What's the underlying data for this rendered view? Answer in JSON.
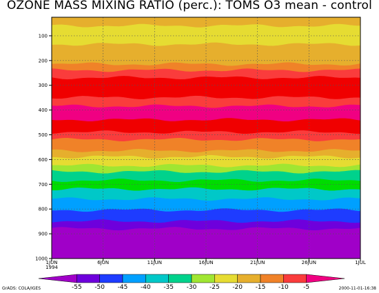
{
  "chart_data": {
    "type": "heatmap",
    "title": "OZONE MASS MIXING RATIO (perc.): TOMS O3 mean - control",
    "x_tick_labels": [
      "1JUN",
      "6JUN",
      "11JUN",
      "16JUN",
      "21JUN",
      "26JUN",
      "1JUL"
    ],
    "x_year_label": "1994",
    "y_tick_labels": [
      "100",
      "200",
      "300",
      "400",
      "500",
      "600",
      "700",
      "800",
      "900",
      "1000"
    ],
    "yrange": [
      25,
      1000
    ],
    "y_reversed": true,
    "grid": true,
    "colorbar_ticks": [
      "-55",
      "-50",
      "-45",
      "-40",
      "-35",
      "-30",
      "-25",
      "-20",
      "-15",
      "-10",
      "-5"
    ],
    "colorbar_colors": [
      "#a000c8",
      "#6e00dc",
      "#1e3cff",
      "#00a0ff",
      "#00c8c8",
      "#00d28c",
      "#a0e632",
      "#e6dc32",
      "#e6af2d",
      "#f08228",
      "#fa3c3c",
      "#f00082"
    ],
    "bands": [
      {
        "from": 25,
        "to": 60,
        "color": "#e6af2d"
      },
      {
        "from": 60,
        "to": 135,
        "color": "#e6dc32"
      },
      {
        "from": 135,
        "to": 215,
        "color": "#e6af2d"
      },
      {
        "from": 215,
        "to": 240,
        "color": "#f08228"
      },
      {
        "from": 240,
        "to": 270,
        "color": "#fa3c3c"
      },
      {
        "from": 270,
        "to": 350,
        "color": "#f00000"
      },
      {
        "from": 350,
        "to": 385,
        "color": "#fa3c3c"
      },
      {
        "from": 385,
        "to": 440,
        "color": "#f00082"
      },
      {
        "from": 440,
        "to": 490,
        "color": "#f00000"
      },
      {
        "from": 490,
        "to": 520,
        "color": "#fa3c3c"
      },
      {
        "from": 520,
        "to": 565,
        "color": "#f08228"
      },
      {
        "from": 565,
        "to": 590,
        "color": "#e6af2d"
      },
      {
        "from": 590,
        "to": 625,
        "color": "#e6dc32"
      },
      {
        "from": 625,
        "to": 650,
        "color": "#a0e632"
      },
      {
        "from": 650,
        "to": 685,
        "color": "#00d28c"
      },
      {
        "from": 685,
        "to": 720,
        "color": "#00dc00"
      },
      {
        "from": 720,
        "to": 760,
        "color": "#00c8c8"
      },
      {
        "from": 760,
        "to": 805,
        "color": "#00a0ff"
      },
      {
        "from": 805,
        "to": 850,
        "color": "#1e3cff"
      },
      {
        "from": 850,
        "to": 880,
        "color": "#6e00dc"
      },
      {
        "from": 880,
        "to": 1000,
        "color": "#a000c8"
      }
    ]
  },
  "footer": {
    "left": "GrADS: COLA/IGES",
    "right": "2000-11-01-16:38"
  }
}
